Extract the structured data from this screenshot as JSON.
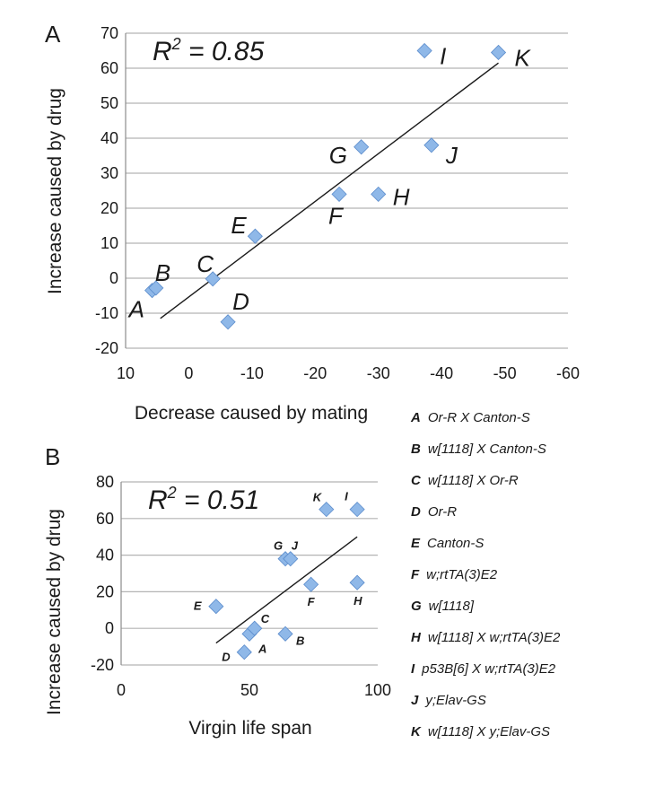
{
  "chart_data": [
    {
      "type": "scatter",
      "panel_label": "A",
      "title": "",
      "annotation": {
        "prefix": "R",
        "sup": "2",
        "suffix": " = 0.85"
      },
      "xlabel": "Decrease caused by mating",
      "ylabel": "Increase caused by drug",
      "xlim": [
        10,
        -60
      ],
      "ylim": [
        -20,
        70
      ],
      "xticks": [
        "10",
        "0",
        "-10",
        "-20",
        "-30",
        "-40",
        "-50",
        "-60"
      ],
      "xtick_values": [
        10,
        0,
        -10,
        -20,
        -30,
        -40,
        -50,
        -60
      ],
      "yticks": [
        "-20",
        "-10",
        "0",
        "10",
        "20",
        "30",
        "40",
        "50",
        "60",
        "70"
      ],
      "ytick_values": [
        -20,
        -10,
        0,
        10,
        20,
        30,
        40,
        50,
        60,
        70
      ],
      "grid": "horizontal",
      "marker_color": "#8fb8e8",
      "trendline": {
        "x": [
          4.5,
          -49
        ],
        "y": [
          -11.5,
          61.5
        ]
      },
      "points": [
        {
          "label": "A",
          "x": 5.8,
          "y": -3.5
        },
        {
          "label": "B",
          "x": 5.2,
          "y": -2.8
        },
        {
          "label": "C",
          "x": -3.8,
          "y": -0.2
        },
        {
          "label": "D",
          "x": -6.2,
          "y": -12.5
        },
        {
          "label": "E",
          "x": -10.5,
          "y": 12
        },
        {
          "label": "F",
          "x": -23.8,
          "y": 24
        },
        {
          "label": "G",
          "x": -27.3,
          "y": 37.5
        },
        {
          "label": "H",
          "x": -30,
          "y": 24
        },
        {
          "label": "I",
          "x": -37.3,
          "y": 65
        },
        {
          "label": "J",
          "x": -38.4,
          "y": 38
        },
        {
          "label": "K",
          "x": -49,
          "y": 64.5
        }
      ]
    },
    {
      "type": "scatter",
      "panel_label": "B",
      "title": "",
      "annotation": {
        "prefix": "R",
        "sup": "2",
        "suffix": " = 0.51"
      },
      "xlabel": "Virgin life span",
      "ylabel": "Increase caused by drug",
      "xlim": [
        0,
        100
      ],
      "ylim": [
        -20,
        80
      ],
      "xticks": [
        "0",
        "50",
        "100"
      ],
      "xtick_values": [
        0,
        50,
        100
      ],
      "yticks": [
        "-20",
        "0",
        "20",
        "40",
        "60",
        "80"
      ],
      "ytick_values": [
        -20,
        0,
        20,
        40,
        60,
        80
      ],
      "grid": "horizontal",
      "marker_color": "#8fb8e8",
      "trendline": {
        "x": [
          37,
          92
        ],
        "y": [
          -8,
          50
        ]
      },
      "points": [
        {
          "label": "A",
          "x": 50,
          "y": -3
        },
        {
          "label": "B",
          "x": 64,
          "y": -3
        },
        {
          "label": "C",
          "x": 52,
          "y": 0
        },
        {
          "label": "D",
          "x": 48,
          "y": -13
        },
        {
          "label": "E",
          "x": 37,
          "y": 12
        },
        {
          "label": "F",
          "x": 74,
          "y": 24
        },
        {
          "label": "G",
          "x": 64,
          "y": 38
        },
        {
          "label": "H",
          "x": 92,
          "y": 25
        },
        {
          "label": "I",
          "x": 92,
          "y": 65
        },
        {
          "label": "J",
          "x": 66,
          "y": 38
        },
        {
          "label": "K",
          "x": 80,
          "y": 65
        }
      ]
    }
  ],
  "legend": [
    {
      "key": "A",
      "text": "Or-R X Canton-S"
    },
    {
      "key": "B",
      "text": "w[1118] X Canton-S"
    },
    {
      "key": "C",
      "text": "w[1118] X Or-R"
    },
    {
      "key": "D",
      "text": "Or-R"
    },
    {
      "key": "E",
      "text": "Canton-S"
    },
    {
      "key": "F",
      "text": "w;rtTA(3)E2"
    },
    {
      "key": "G",
      "text": "w[1118]"
    },
    {
      "key": "H",
      "text": "w[1118] X w;rtTA(3)E2"
    },
    {
      "key": "I",
      "text": "p53B[6] X w;rtTA(3)E2"
    },
    {
      "key": "J",
      "text": "y;Elav-GS"
    },
    {
      "key": "K",
      "text": "w[1118] X y;Elav-GS"
    }
  ]
}
